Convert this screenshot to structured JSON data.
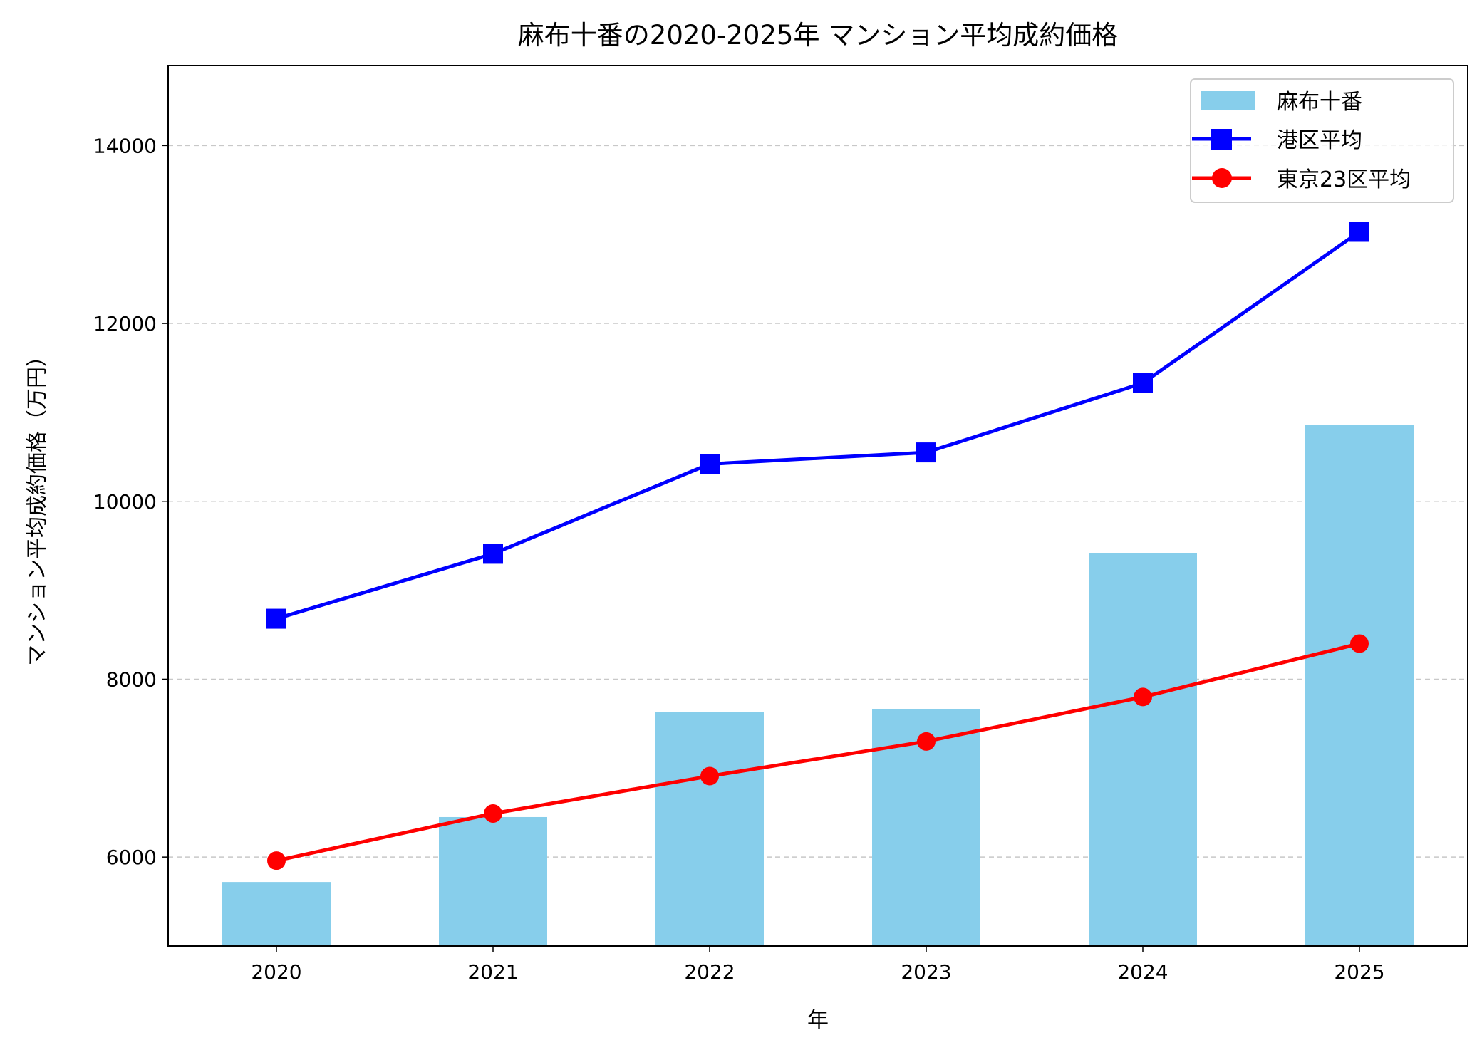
{
  "chart_data": {
    "type": "bar+line",
    "title": "麻布十番の2020-2025年 マンション平均成約価格",
    "xlabel": "年",
    "ylabel": "マンション平均成約価格（万円）",
    "categories": [
      "2020",
      "2021",
      "2022",
      "2023",
      "2024",
      "2025"
    ],
    "ylim": [
      5000,
      14900
    ],
    "yticks": [
      6000,
      8000,
      10000,
      12000,
      14000
    ],
    "grid": "y dashed",
    "legend_position": "top-right",
    "series": [
      {
        "name": "麻布十番",
        "kind": "bar",
        "color": "#87ceeb",
        "values": [
          5720,
          6450,
          7630,
          7660,
          9420,
          10860
        ]
      },
      {
        "name": "港区平均",
        "kind": "line",
        "marker": "square",
        "color": "#0000ff",
        "values": [
          8680,
          9410,
          10420,
          10550,
          11330,
          13030
        ]
      },
      {
        "name": "東京23区平均",
        "kind": "line",
        "marker": "circle",
        "color": "#ff0000",
        "values": [
          5960,
          6490,
          6910,
          7300,
          7800,
          8400
        ]
      }
    ]
  }
}
